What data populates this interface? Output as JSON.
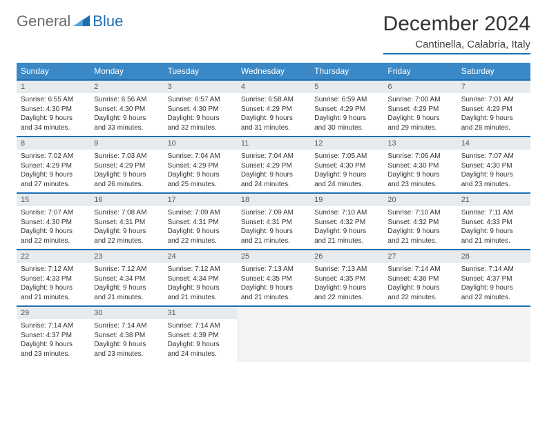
{
  "logo": {
    "general": "General",
    "blue": "Blue"
  },
  "header": {
    "title": "December 2024",
    "subtitle": "Cantinella, Calabria, Italy"
  },
  "colors": {
    "header_bg": "#3a88c6",
    "accent": "#1b6fb3",
    "daynum_bg": "#e8ebed",
    "empty_bg": "#f1f3f4"
  },
  "weekdays": [
    "Sunday",
    "Monday",
    "Tuesday",
    "Wednesday",
    "Thursday",
    "Friday",
    "Saturday"
  ],
  "days": [
    {
      "n": "1",
      "sr": "6:55 AM",
      "ss": "4:30 PM",
      "dl": "9 hours and 34 minutes."
    },
    {
      "n": "2",
      "sr": "6:56 AM",
      "ss": "4:30 PM",
      "dl": "9 hours and 33 minutes."
    },
    {
      "n": "3",
      "sr": "6:57 AM",
      "ss": "4:30 PM",
      "dl": "9 hours and 32 minutes."
    },
    {
      "n": "4",
      "sr": "6:58 AM",
      "ss": "4:29 PM",
      "dl": "9 hours and 31 minutes."
    },
    {
      "n": "5",
      "sr": "6:59 AM",
      "ss": "4:29 PM",
      "dl": "9 hours and 30 minutes."
    },
    {
      "n": "6",
      "sr": "7:00 AM",
      "ss": "4:29 PM",
      "dl": "9 hours and 29 minutes."
    },
    {
      "n": "7",
      "sr": "7:01 AM",
      "ss": "4:29 PM",
      "dl": "9 hours and 28 minutes."
    },
    {
      "n": "8",
      "sr": "7:02 AM",
      "ss": "4:29 PM",
      "dl": "9 hours and 27 minutes."
    },
    {
      "n": "9",
      "sr": "7:03 AM",
      "ss": "4:29 PM",
      "dl": "9 hours and 26 minutes."
    },
    {
      "n": "10",
      "sr": "7:04 AM",
      "ss": "4:29 PM",
      "dl": "9 hours and 25 minutes."
    },
    {
      "n": "11",
      "sr": "7:04 AM",
      "ss": "4:29 PM",
      "dl": "9 hours and 24 minutes."
    },
    {
      "n": "12",
      "sr": "7:05 AM",
      "ss": "4:30 PM",
      "dl": "9 hours and 24 minutes."
    },
    {
      "n": "13",
      "sr": "7:06 AM",
      "ss": "4:30 PM",
      "dl": "9 hours and 23 minutes."
    },
    {
      "n": "14",
      "sr": "7:07 AM",
      "ss": "4:30 PM",
      "dl": "9 hours and 23 minutes."
    },
    {
      "n": "15",
      "sr": "7:07 AM",
      "ss": "4:30 PM",
      "dl": "9 hours and 22 minutes."
    },
    {
      "n": "16",
      "sr": "7:08 AM",
      "ss": "4:31 PM",
      "dl": "9 hours and 22 minutes."
    },
    {
      "n": "17",
      "sr": "7:09 AM",
      "ss": "4:31 PM",
      "dl": "9 hours and 22 minutes."
    },
    {
      "n": "18",
      "sr": "7:09 AM",
      "ss": "4:31 PM",
      "dl": "9 hours and 21 minutes."
    },
    {
      "n": "19",
      "sr": "7:10 AM",
      "ss": "4:32 PM",
      "dl": "9 hours and 21 minutes."
    },
    {
      "n": "20",
      "sr": "7:10 AM",
      "ss": "4:32 PM",
      "dl": "9 hours and 21 minutes."
    },
    {
      "n": "21",
      "sr": "7:11 AM",
      "ss": "4:33 PM",
      "dl": "9 hours and 21 minutes."
    },
    {
      "n": "22",
      "sr": "7:12 AM",
      "ss": "4:33 PM",
      "dl": "9 hours and 21 minutes."
    },
    {
      "n": "23",
      "sr": "7:12 AM",
      "ss": "4:34 PM",
      "dl": "9 hours and 21 minutes."
    },
    {
      "n": "24",
      "sr": "7:12 AM",
      "ss": "4:34 PM",
      "dl": "9 hours and 21 minutes."
    },
    {
      "n": "25",
      "sr": "7:13 AM",
      "ss": "4:35 PM",
      "dl": "9 hours and 21 minutes."
    },
    {
      "n": "26",
      "sr": "7:13 AM",
      "ss": "4:35 PM",
      "dl": "9 hours and 22 minutes."
    },
    {
      "n": "27",
      "sr": "7:14 AM",
      "ss": "4:36 PM",
      "dl": "9 hours and 22 minutes."
    },
    {
      "n": "28",
      "sr": "7:14 AM",
      "ss": "4:37 PM",
      "dl": "9 hours and 22 minutes."
    },
    {
      "n": "29",
      "sr": "7:14 AM",
      "ss": "4:37 PM",
      "dl": "9 hours and 23 minutes."
    },
    {
      "n": "30",
      "sr": "7:14 AM",
      "ss": "4:38 PM",
      "dl": "9 hours and 23 minutes."
    },
    {
      "n": "31",
      "sr": "7:14 AM",
      "ss": "4:39 PM",
      "dl": "9 hours and 24 minutes."
    }
  ],
  "labels": {
    "sunrise": "Sunrise: ",
    "sunset": "Sunset: ",
    "daylight": "Daylight: "
  },
  "layout": {
    "start_offset": 0,
    "total_cells": 35
  }
}
